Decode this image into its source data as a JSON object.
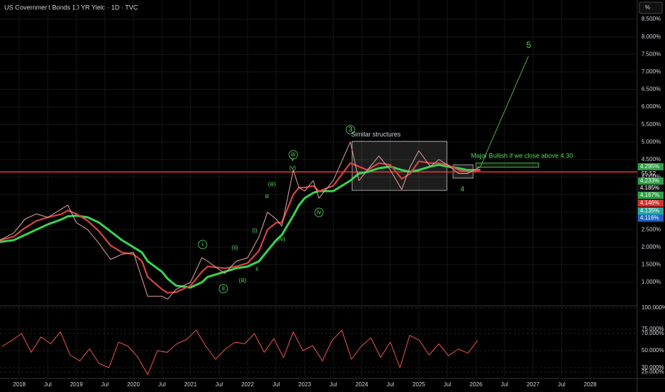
{
  "chart_data": {
    "type": "line",
    "title": "US Government Bonds 10 YR Yield · 1D · TVC",
    "unit_button": "%",
    "x": [
      2017.66,
      2017.9,
      2018.1,
      2018.3,
      2018.5,
      2018.75,
      2018.85,
      2019.0,
      2019.2,
      2019.4,
      2019.6,
      2019.8,
      2020.0,
      2020.15,
      2020.25,
      2020.5,
      2020.6,
      2020.75,
      2021.0,
      2021.2,
      2021.3,
      2021.6,
      2021.8,
      2022.0,
      2022.2,
      2022.35,
      2022.5,
      2022.6,
      2022.8,
      2022.9,
      2023.0,
      2023.15,
      2023.25,
      2023.5,
      2023.8,
      2023.95,
      2024.1,
      2024.3,
      2024.5,
      2024.7,
      2024.85,
      2025.0,
      2025.2,
      2025.35,
      2025.5,
      2025.7,
      2025.85,
      2026.08
    ],
    "series": [
      {
        "color": "#39d353",
        "values": [
          2.15,
          2.2,
          2.35,
          2.5,
          2.65,
          2.8,
          2.88,
          2.9,
          2.85,
          2.7,
          2.45,
          2.2,
          2.0,
          1.85,
          1.6,
          1.3,
          1.1,
          0.9,
          0.85,
          1.0,
          1.15,
          1.3,
          1.4,
          1.45,
          1.6,
          1.9,
          2.2,
          2.35,
          2.9,
          3.2,
          3.4,
          3.55,
          3.6,
          3.6,
          3.9,
          4.1,
          4.15,
          4.25,
          4.3,
          4.2,
          4.15,
          4.2,
          4.3,
          4.35,
          4.3,
          4.25,
          4.2,
          4.2
        ]
      },
      {
        "color": "#d84343",
        "values": [
          2.2,
          2.3,
          2.55,
          2.75,
          2.85,
          2.95,
          3.05,
          2.95,
          2.75,
          2.45,
          2.05,
          1.85,
          1.8,
          1.6,
          1.15,
          0.8,
          0.7,
          0.72,
          0.9,
          1.3,
          1.45,
          1.4,
          1.45,
          1.55,
          1.9,
          2.5,
          2.7,
          2.7,
          3.5,
          3.7,
          3.7,
          3.75,
          3.6,
          3.75,
          4.4,
          4.3,
          4.2,
          4.4,
          4.35,
          3.95,
          4.1,
          4.45,
          4.4,
          4.4,
          4.35,
          4.2,
          4.15,
          4.2
        ]
      },
      {
        "color": "#e8a3a3",
        "values": [
          2.2,
          2.4,
          2.8,
          2.95,
          2.85,
          3.1,
          3.2,
          2.7,
          2.5,
          2.1,
          1.65,
          1.8,
          1.85,
          1.1,
          0.6,
          0.6,
          0.52,
          0.8,
          1.0,
          1.7,
          1.6,
          1.25,
          1.6,
          1.7,
          2.3,
          3.0,
          2.8,
          2.6,
          4.2,
          3.7,
          3.6,
          3.9,
          3.4,
          3.9,
          5.0,
          3.9,
          4.2,
          4.6,
          4.2,
          3.65,
          4.3,
          4.75,
          4.3,
          4.5,
          4.35,
          4.1,
          4.1,
          4.295
        ]
      }
    ],
    "xlim": [
      2017.6625,
      2028.825
    ],
    "xticks": [
      2018,
      {
        "value": 2018.5,
        "label": "Jul"
      },
      2019,
      {
        "value": 2019.5,
        "label": "Jul"
      },
      2020,
      {
        "value": 2020.5,
        "label": "Jul"
      },
      2021,
      {
        "value": 2021.5,
        "label": "Jul"
      },
      2022,
      {
        "value": 2022.5,
        "label": "Jul"
      },
      2023,
      {
        "value": 2023.5,
        "label": "Jul"
      },
      2024,
      {
        "value": 2024.5,
        "label": "Jul"
      },
      2025,
      {
        "value": 2025.5,
        "label": "Jul"
      },
      2026,
      {
        "value": 2026.5,
        "label": "Jul"
      },
      2027,
      {
        "value": 2027.5,
        "label": "Jul"
      },
      2028
    ],
    "ylim": [
      0.35,
      9.05
    ],
    "yticks": [
      {
        "value": 1.0,
        "label": "1.000%"
      },
      {
        "value": 1.5,
        "label": "1.500%"
      },
      {
        "value": 2.0,
        "label": "2.000%"
      },
      {
        "value": 2.5,
        "label": "2.500%"
      },
      {
        "value": 3.0,
        "label": "3.000%"
      },
      {
        "value": 3.5,
        "label": "3.500%"
      },
      {
        "value": 4.0,
        "label": "4.000%"
      },
      {
        "value": 4.5,
        "label": "4.500%"
      },
      {
        "value": 5.0,
        "label": "5.000%"
      },
      {
        "value": 5.5,
        "label": "5.500%"
      },
      {
        "value": 6.0,
        "label": "6.000%"
      },
      {
        "value": 6.5,
        "label": "6.500%"
      },
      {
        "value": 7.0,
        "label": "7.000%"
      },
      {
        "value": 7.5,
        "label": "7.500%"
      },
      {
        "value": 8.0,
        "label": "8.000%"
      },
      {
        "value": 8.5,
        "label": "8.500%"
      }
    ],
    "grid": true,
    "hline": {
      "value": 4.146,
      "color": "#e53935"
    },
    "projection": {
      "x": [
        2026.08,
        2026.92
      ],
      "values": [
        4.3,
        7.45
      ],
      "color": "#4caf50"
    },
    "boxes": [
      {
        "xlim": [
          2023.83,
          2025.49
        ],
        "ylim": [
          3.62,
          5.02
        ],
        "color": "#9e9e9e"
      },
      {
        "xlim": [
          2025.6,
          2025.95
        ],
        "ylim": [
          3.97,
          4.35
        ],
        "color": "#9e9e9e"
      },
      {
        "xlim": [
          2026.0,
          2027.1
        ],
        "ylim": [
          4.28,
          4.4
        ],
        "color": "#4caf50"
      }
    ],
    "annotations": [
      "Similar structures",
      "Major Bullish if we close above 4.30"
    ],
    "waves": [
      "5",
      "3",
      "4",
      "i",
      "ii",
      "iii",
      "iv",
      "(i)",
      "(ii)",
      "(iii)",
      "(iii)",
      "(iv)",
      "(v)",
      "ii",
      "iii",
      "v"
    ],
    "badges": [
      {
        "value": 4.295,
        "label": "4.295%",
        "color": "#2e9e44"
      },
      {
        "value": 4.233,
        "label": "4.233%",
        "color": "#2e9e44"
      },
      {
        "value": 4.185,
        "label": "4.185%",
        "color": "#111111"
      },
      {
        "value": 4.167,
        "label": "4.167%",
        "color": "#2e9e44"
      },
      {
        "value": 4.146,
        "label": "4.146%",
        "color": "#d32f2f"
      },
      {
        "value": 4.135,
        "label": "4.135%",
        "color": "#26a69a"
      },
      {
        "value": 4.116,
        "label": "4.116%",
        "color": "#1e63c4"
      }
    ],
    "countdown": "55:52",
    "rsi": {
      "color": "#ef5350",
      "x": [
        2017.7,
        2017.87,
        2018.04,
        2018.21,
        2018.38,
        2018.55,
        2018.72,
        2018.89,
        2019.06,
        2019.23,
        2019.4,
        2019.57,
        2019.74,
        2019.91,
        2020.08,
        2020.25,
        2020.42,
        2020.59,
        2020.76,
        2020.93,
        2021.1,
        2021.27,
        2021.44,
        2021.61,
        2021.78,
        2021.95,
        2022.12,
        2022.29,
        2022.46,
        2022.63,
        2022.8,
        2022.97,
        2023.14,
        2023.31,
        2023.48,
        2023.65,
        2023.82,
        2023.99,
        2024.16,
        2024.33,
        2024.5,
        2024.67,
        2024.84,
        2025.01,
        2025.18,
        2025.35,
        2025.52,
        2025.69,
        2025.86,
        2026.03
      ],
      "values": [
        55,
        62,
        70,
        48,
        66,
        58,
        72,
        45,
        38,
        52,
        35,
        30,
        60,
        55,
        42,
        22,
        50,
        48,
        58,
        63,
        74,
        55,
        40,
        52,
        60,
        58,
        70,
        48,
        64,
        42,
        72,
        50,
        56,
        38,
        62,
        74,
        40,
        55,
        65,
        42,
        60,
        30,
        68,
        62,
        45,
        58,
        44,
        52,
        47,
        62
      ],
      "ylim": [
        20,
        100
      ],
      "yticks": [
        {
          "value": 25,
          "label": "25.000%"
        },
        {
          "value": 30,
          "label": "30.000%"
        },
        {
          "value": 50,
          "label": "50.000%"
        },
        {
          "value": 70,
          "label": "70.000%"
        },
        {
          "value": 75,
          "label": "75.000%"
        },
        {
          "value": 100,
          "label": "100.000%"
        }
      ]
    }
  }
}
